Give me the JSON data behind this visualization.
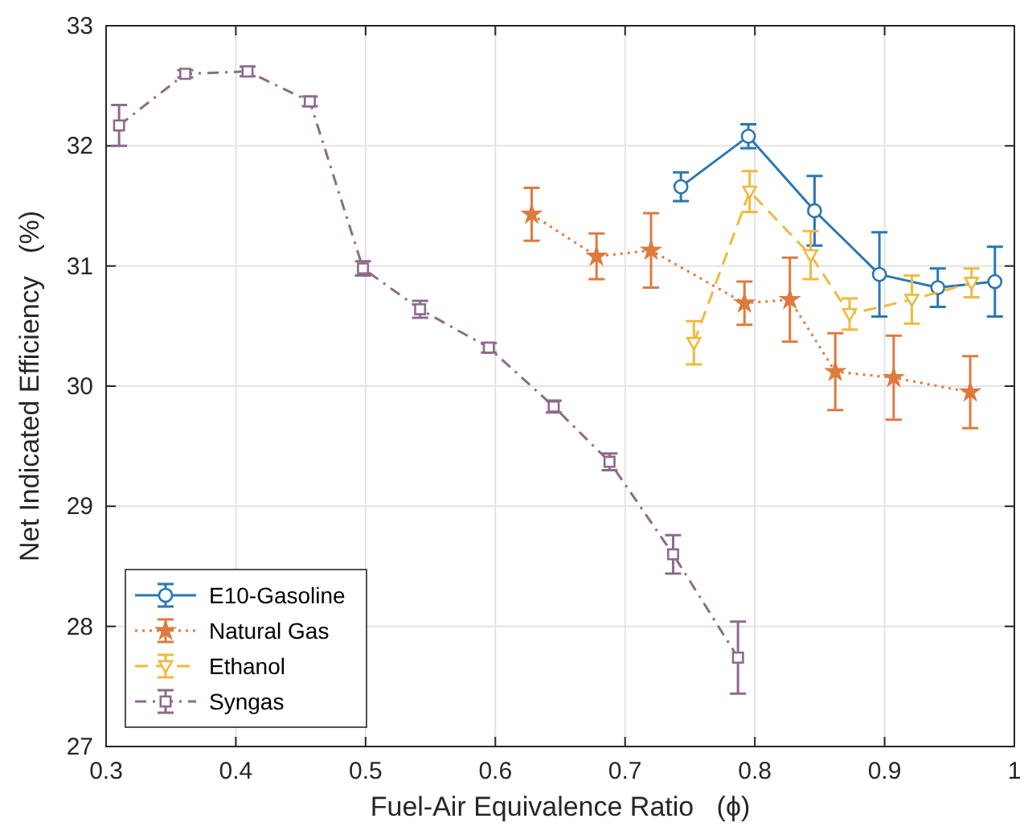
{
  "chart_data": {
    "type": "line",
    "xlabel": "Fuel-Air Equivalence Ratio   (ϕ)",
    "ylabel": "Net Indicated Efficiency   (%)",
    "xlim": [
      0.3,
      1
    ],
    "ylim": [
      27,
      33
    ],
    "xticks": [
      0.3,
      0.4,
      0.5,
      0.6,
      0.7,
      0.8,
      0.9,
      1
    ],
    "yticks": [
      27,
      28,
      29,
      30,
      31,
      32,
      33
    ],
    "grid": true,
    "legend": "bottom left",
    "series": [
      {
        "name": "E10-Gasoline",
        "color": "#2a77b0",
        "marker": "circle",
        "line_style": "solid",
        "x": [
          0.743,
          0.795,
          0.846,
          0.896,
          0.941,
          0.985
        ],
        "values": [
          31.66,
          32.08,
          31.46,
          30.93,
          30.82,
          30.87
        ],
        "errors": [
          0.12,
          0.1,
          0.29,
          0.35,
          0.16,
          0.29
        ]
      },
      {
        "name": "Natural Gas",
        "color": "#dd7b3e",
        "marker": "star",
        "line_style": "dotted",
        "x": [
          0.628,
          0.678,
          0.72,
          0.792,
          0.827,
          0.862,
          0.907,
          0.966
        ],
        "values": [
          31.43,
          31.08,
          31.13,
          30.69,
          30.72,
          30.12,
          30.07,
          29.95
        ],
        "errors": [
          0.22,
          0.19,
          0.31,
          0.18,
          0.35,
          0.32,
          0.35,
          0.3
        ]
      },
      {
        "name": "Ethanol",
        "color": "#efba3e",
        "marker": "triangle",
        "line_style": "dashed",
        "x": [
          0.753,
          0.796,
          0.843,
          0.873,
          0.921,
          0.967
        ],
        "values": [
          30.36,
          31.62,
          31.09,
          30.6,
          30.72,
          30.86
        ],
        "errors": [
          0.18,
          0.17,
          0.2,
          0.13,
          0.2,
          0.12
        ]
      },
      {
        "name": "Syngas",
        "color": "#8d6a8c",
        "marker": "square",
        "line_style": "dashdot",
        "x": [
          0.31,
          0.361,
          0.409,
          0.457,
          0.498,
          0.542,
          0.595,
          0.645,
          0.688,
          0.737,
          0.787
        ],
        "values": [
          32.17,
          32.6,
          32.62,
          32.37,
          30.98,
          30.64,
          30.32,
          29.83,
          29.37,
          28.6,
          27.74
        ],
        "errors": [
          0.17,
          0.03,
          0.04,
          0.04,
          0.06,
          0.07,
          0.04,
          0.05,
          0.07,
          0.16,
          0.3
        ]
      }
    ]
  }
}
